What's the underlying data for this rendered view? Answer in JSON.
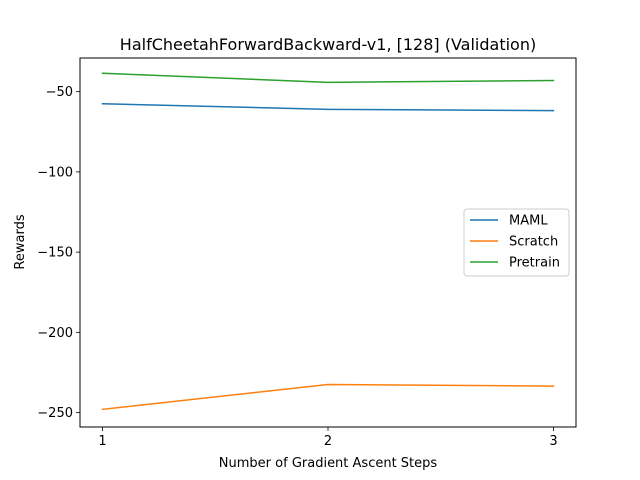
{
  "chart_data": {
    "type": "line",
    "title": "HalfCheetahForwardBackward-v1, [128] (Validation)",
    "xlabel": "Number of Gradient Ascent Steps",
    "ylabel": "Rewards",
    "x": [
      1,
      2,
      3
    ],
    "xticks": [
      "1",
      "2",
      "3"
    ],
    "xlim": [
      0.9,
      3.1
    ],
    "ylim": [
      -259,
      -29
    ],
    "yticks": [
      -50,
      -100,
      -150,
      -200,
      -250
    ],
    "ytick_labels": [
      "−50",
      "−100",
      "−150",
      "−200",
      "−250"
    ],
    "grid": false,
    "legend_position": "center-right",
    "series": [
      {
        "name": "MAML",
        "color": "#1f77b4",
        "values": [
          -57.5,
          -61.0,
          -61.8
        ]
      },
      {
        "name": "Scratch",
        "color": "#ff7f0e",
        "values": [
          -248.0,
          -232.5,
          -233.5
        ]
      },
      {
        "name": "Pretrain",
        "color": "#2ca02c",
        "values": [
          -38.5,
          -44.2,
          -43.0
        ]
      }
    ]
  }
}
